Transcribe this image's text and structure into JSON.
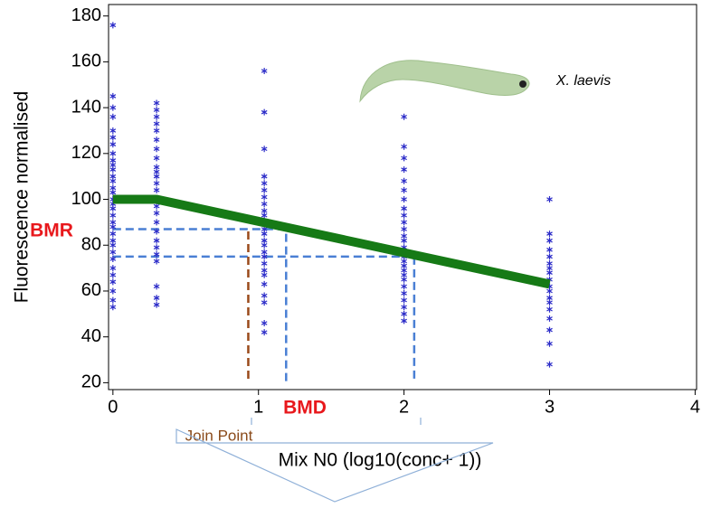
{
  "chart_data": {
    "type": "scatter",
    "xlabel": "Mix N0 (log10(conc+ 1))",
    "ylabel": "Fluorescence normalised",
    "xlim": [
      -0.03,
      4.01
    ],
    "ylim": [
      17,
      185
    ],
    "xticks": [
      0,
      1,
      2,
      3,
      4
    ],
    "yticks": [
      20,
      40,
      60,
      80,
      100,
      120,
      140,
      160,
      180
    ],
    "point_color": "#2b2bc8",
    "scatter_groups": [
      {
        "x": 0,
        "values": [
          176,
          145,
          140,
          136,
          130,
          127,
          124,
          120,
          117,
          115,
          113,
          110,
          108,
          105,
          103,
          100,
          98,
          96,
          93,
          90,
          88,
          85,
          82,
          80,
          77,
          74,
          70,
          67,
          64,
          60,
          56,
          53
        ]
      },
      {
        "x": 0.3,
        "values": [
          142,
          139,
          136,
          133,
          130,
          126,
          122,
          118,
          114,
          112,
          110,
          107,
          104,
          100,
          97,
          94,
          90,
          86,
          82,
          79,
          76,
          73,
          62,
          57,
          54
        ]
      },
      {
        "x": 1.04,
        "values": [
          156,
          138,
          122,
          110,
          107,
          104,
          101,
          98,
          95,
          93,
          90,
          87,
          85,
          82,
          80,
          77,
          75,
          72,
          69,
          67,
          63,
          58,
          55,
          46,
          42
        ]
      },
      {
        "x": 2.0,
        "values": [
          136,
          123,
          118,
          113,
          108,
          104,
          100,
          96,
          93,
          90,
          87,
          84,
          82,
          79,
          77,
          75,
          73,
          71,
          69,
          67,
          65,
          62,
          59,
          56,
          53,
          50,
          47
        ]
      },
      {
        "x": 3.0,
        "values": [
          100,
          85,
          82,
          78,
          75,
          72,
          70,
          68,
          65,
          62,
          60,
          57,
          55,
          52,
          48,
          43,
          37,
          28
        ]
      }
    ],
    "fit_line": {
      "color": "#167a16",
      "x": [
        0,
        0.3,
        3
      ],
      "values": [
        100,
        100,
        63
      ]
    },
    "dashed_lines": [
      {
        "color": "#4a7fd4",
        "x": [
          0,
          1.19
        ],
        "values": [
          87,
          87
        ]
      },
      {
        "color": "#4a7fd4",
        "x": [
          0,
          2.07
        ],
        "values": [
          75,
          75
        ]
      },
      {
        "color": "#4a7fd4",
        "x": [
          1.19,
          1.19
        ],
        "values": [
          85,
          20
        ]
      },
      {
        "color": "#4a7fd4",
        "x": [
          2.07,
          2.07
        ],
        "values": [
          75,
          20
        ]
      },
      {
        "color": "#9a4a1a",
        "x": [
          0.93,
          0.93
        ],
        "values": [
          86,
          20
        ]
      }
    ],
    "annotations": {
      "bmr": "BMR",
      "bmd": "BMD",
      "join_point": "Join Point",
      "species": "X. laevis"
    }
  }
}
